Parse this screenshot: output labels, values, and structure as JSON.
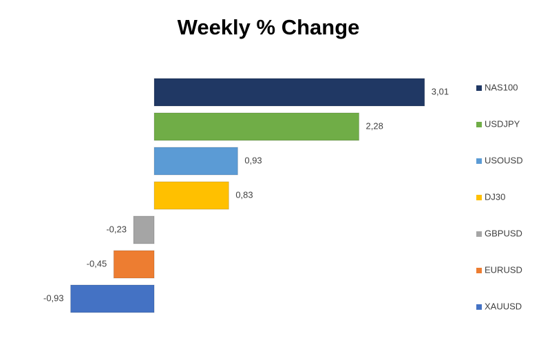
{
  "chart_data": {
    "type": "bar",
    "orientation": "horizontal",
    "title": "Weekly % Change",
    "categories": [
      "NAS100",
      "USDJPY",
      "USOUSD",
      "DJ30",
      "GBPUSD",
      "EURUSD",
      "XAUUSD"
    ],
    "values": [
      3.01,
      2.28,
      0.93,
      0.83,
      -0.23,
      -0.45,
      -0.93
    ],
    "value_labels": [
      "3,01",
      "2,28",
      "0,93",
      "0,83",
      "-0,23",
      "-0,45",
      "-0,93"
    ],
    "colors": [
      "#203864",
      "#70ad47",
      "#5b9bd5",
      "#ffc000",
      "#a5a5a5",
      "#ed7d31",
      "#4472c4"
    ],
    "legend": "right"
  }
}
